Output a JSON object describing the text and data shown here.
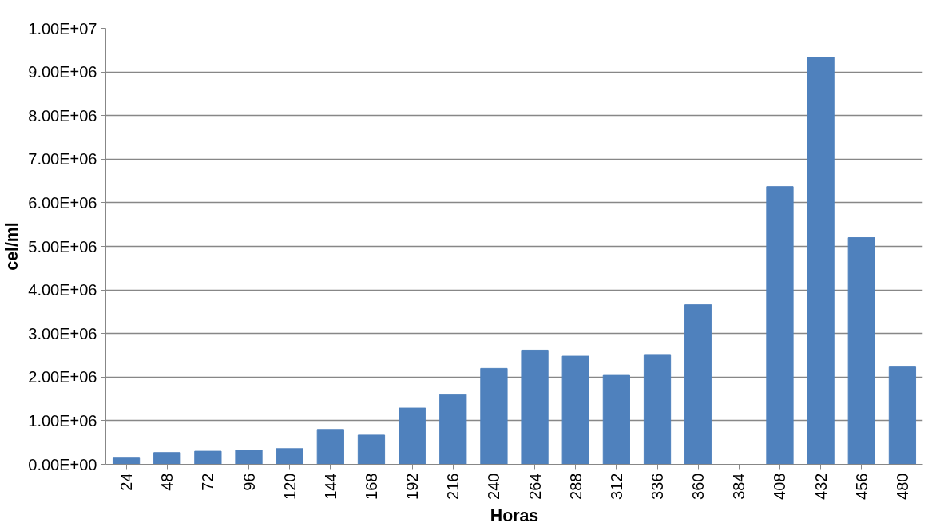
{
  "chart_data": {
    "type": "bar",
    "xlabel": "Horas",
    "ylabel": "cel/ml",
    "categories": [
      "24",
      "48",
      "72",
      "96",
      "120",
      "144",
      "168",
      "192",
      "216",
      "240",
      "264",
      "288",
      "312",
      "336",
      "360",
      "384",
      "408",
      "432",
      "456",
      "480"
    ],
    "values": [
      160000,
      270000,
      300000,
      320000,
      360000,
      800000,
      670000,
      1290000,
      1600000,
      2200000,
      2620000,
      2480000,
      2040000,
      2520000,
      3660000,
      null,
      6370000,
      9330000,
      5200000,
      2250000
    ],
    "color": "#4f81bd",
    "ylim": [
      0,
      10000000
    ],
    "yticks": [
      {
        "value": 0,
        "label": "0.00E+00"
      },
      {
        "value": 1000000,
        "label": "1.00E+06"
      },
      {
        "value": 2000000,
        "label": "2.00E+06"
      },
      {
        "value": 3000000,
        "label": "3.00E+06"
      },
      {
        "value": 4000000,
        "label": "4.00E+06"
      },
      {
        "value": 5000000,
        "label": "5.00E+06"
      },
      {
        "value": 6000000,
        "label": "6.00E+06"
      },
      {
        "value": 7000000,
        "label": "7.00E+06"
      },
      {
        "value": 8000000,
        "label": "8.00E+06"
      },
      {
        "value": 9000000,
        "label": "9.00E+06"
      },
      {
        "value": 10000000,
        "label": "1.00E+07"
      }
    ],
    "grid": "y"
  }
}
